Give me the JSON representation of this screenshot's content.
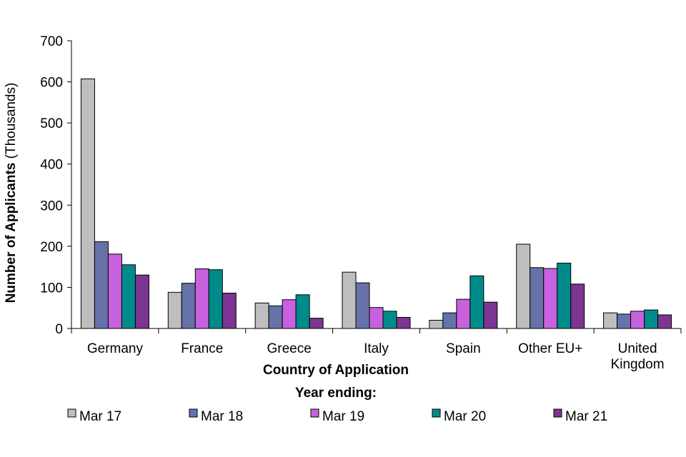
{
  "chart_data": {
    "type": "bar",
    "title": "",
    "xlabel": "Country of Application",
    "ylabel_bold": "Number of Applicants",
    "ylabel_normal": " (Thousands)",
    "ylim": [
      0,
      700
    ],
    "yticks": [
      0,
      100,
      200,
      300,
      400,
      500,
      600,
      700
    ],
    "grid": false,
    "legend_title": "Year ending:",
    "legend_placement": "bottom",
    "categories": [
      [
        "Germany"
      ],
      [
        "France"
      ],
      [
        "Greece"
      ],
      [
        "Italy"
      ],
      [
        "Spain"
      ],
      [
        "Other EU+"
      ],
      [
        "United",
        "Kingdom"
      ]
    ],
    "series": [
      {
        "name": "Mar 17",
        "color": "#BEBEBE",
        "values": [
          607,
          88,
          62,
          137,
          20,
          205,
          38
        ]
      },
      {
        "name": "Mar 18",
        "color": "#6672A8",
        "values": [
          211,
          110,
          55,
          111,
          38,
          148,
          35
        ]
      },
      {
        "name": "Mar 19",
        "color": "#C761DE",
        "values": [
          181,
          145,
          70,
          51,
          71,
          146,
          42
        ]
      },
      {
        "name": "Mar 20",
        "color": "#008B8B",
        "values": [
          155,
          143,
          82,
          42,
          128,
          159,
          45
        ]
      },
      {
        "name": "Mar 21",
        "color": "#7C3592",
        "values": [
          130,
          86,
          25,
          27,
          64,
          108,
          33
        ]
      }
    ]
  }
}
